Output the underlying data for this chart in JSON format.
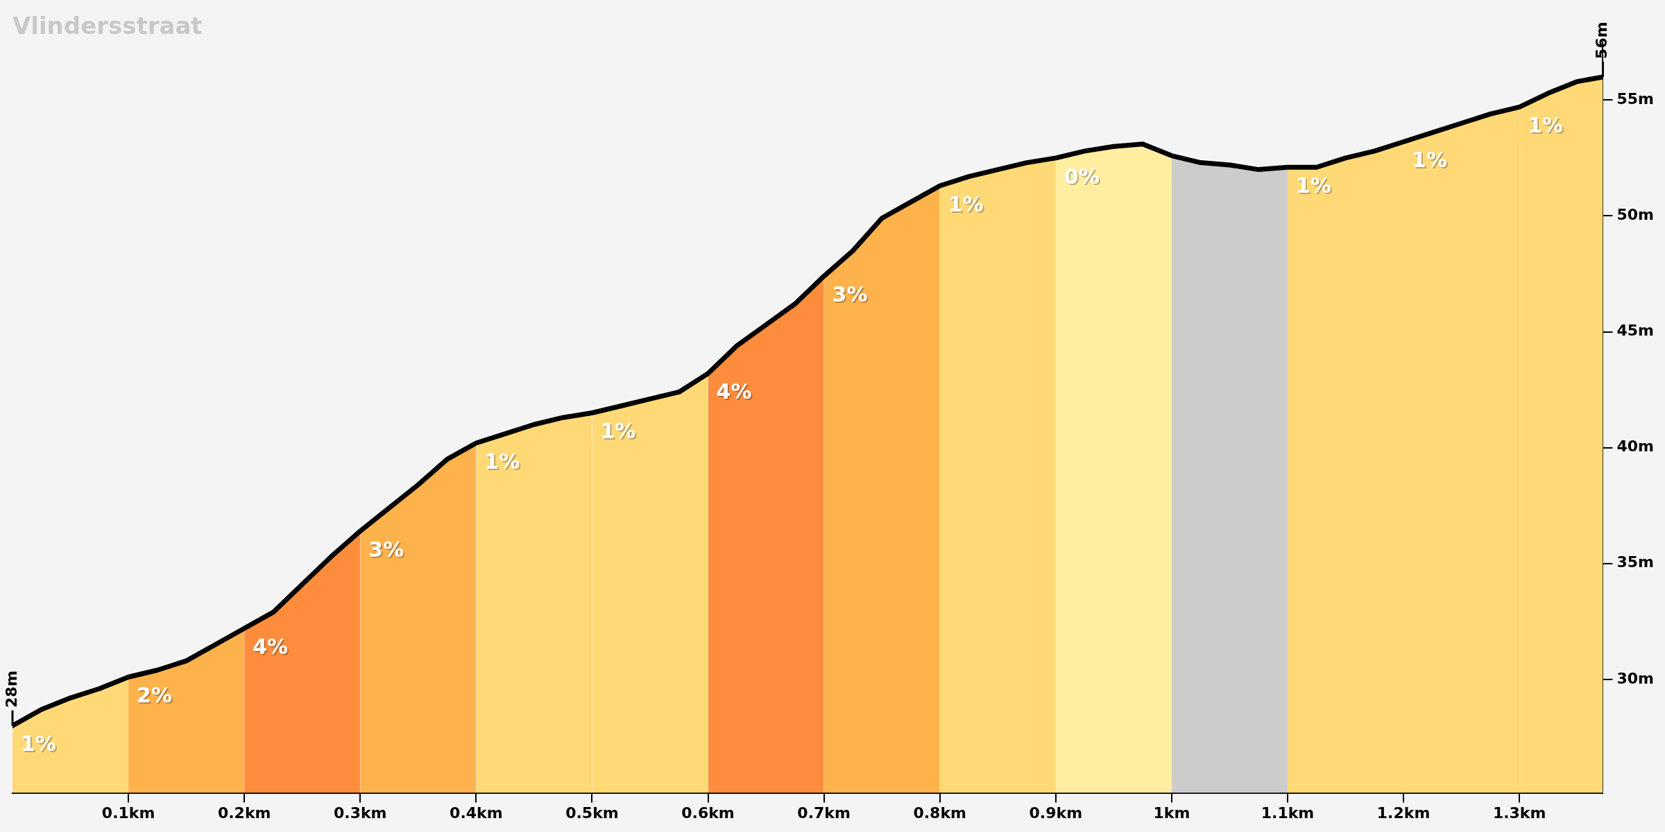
{
  "chart_data": {
    "type": "area",
    "title": "Vlindersstraat",
    "series": [
      {
        "type": "line",
        "color": "#000000",
        "x": [
          0,
          0.025,
          0.05,
          0.075,
          0.1,
          0.125,
          0.15,
          0.175,
          0.2,
          0.225,
          0.25,
          0.275,
          0.3,
          0.325,
          0.35,
          0.375,
          0.4,
          0.425,
          0.45,
          0.475,
          0.5,
          0.525,
          0.55,
          0.575,
          0.6,
          0.625,
          0.65,
          0.675,
          0.7,
          0.725,
          0.75,
          0.775,
          0.8,
          0.825,
          0.85,
          0.875,
          0.9,
          0.925,
          0.95,
          0.975,
          1.0,
          1.025,
          1.05,
          1.075,
          1.1,
          1.125,
          1.15,
          1.175,
          1.2,
          1.225,
          1.25,
          1.275,
          1.3,
          1.325,
          1.35,
          1.372
        ],
        "values": [
          28,
          28.7,
          29.2,
          29.6,
          30.1,
          30.4,
          30.8,
          31.5,
          32.2,
          32.9,
          34.1,
          35.3,
          36.4,
          37.4,
          38.4,
          39.5,
          40.2,
          40.6,
          41.0,
          41.3,
          41.5,
          41.8,
          42.1,
          42.4,
          43.2,
          44.4,
          45.3,
          46.2,
          47.4,
          48.5,
          49.9,
          50.6,
          51.3,
          51.7,
          52.0,
          52.3,
          52.5,
          52.8,
          53.0,
          53.1,
          52.6,
          52.3,
          52.2,
          52.0,
          52.1,
          52.1,
          52.5,
          52.8,
          53.2,
          53.6,
          54.0,
          54.4,
          54.7,
          55.3,
          55.8,
          56
        ]
      },
      {
        "name": "1%",
        "color": "#ffd976",
        "x": [
          0,
          0.025,
          0.05,
          0.075,
          0.1
        ],
        "values": [
          28,
          28.7,
          29.2,
          29.6,
          30.1
        ]
      },
      {
        "name": "2%",
        "color": "#feb24c",
        "x": [
          0.1,
          0.125,
          0.15,
          0.175,
          0.2
        ],
        "values": [
          30.1,
          30.4,
          30.8,
          31.5,
          32.2
        ]
      },
      {
        "name": "4%",
        "color": "#fd8d3c",
        "x": [
          0.2,
          0.225,
          0.25,
          0.275,
          0.3
        ],
        "values": [
          32.2,
          32.9,
          34.1,
          35.3,
          36.4
        ]
      },
      {
        "name": "3%",
        "color": "#feb24c",
        "x": [
          0.3,
          0.325,
          0.35,
          0.375,
          0.4
        ],
        "values": [
          36.4,
          37.4,
          38.4,
          39.5,
          40.2
        ]
      },
      {
        "name": "1%",
        "color": "#ffd976",
        "x": [
          0.4,
          0.425,
          0.45,
          0.475,
          0.5
        ],
        "values": [
          40.2,
          40.6,
          41.0,
          41.3,
          41.5
        ]
      },
      {
        "name": "1%",
        "color": "#ffd976",
        "x": [
          0.5,
          0.525,
          0.55,
          0.575,
          0.6
        ],
        "values": [
          41.5,
          41.8,
          42.1,
          42.4,
          43.2
        ]
      },
      {
        "name": "4%",
        "color": "#fd8d3c",
        "x": [
          0.6,
          0.625,
          0.65,
          0.675,
          0.7
        ],
        "values": [
          43.2,
          44.4,
          45.3,
          46.2,
          47.4
        ]
      },
      {
        "name": "3%",
        "color": "#feb24c",
        "x": [
          0.7,
          0.725,
          0.75,
          0.775,
          0.8
        ],
        "values": [
          47.4,
          48.5,
          49.9,
          50.6,
          51.3
        ]
      },
      {
        "name": "1%",
        "color": "#ffd976",
        "x": [
          0.8,
          0.825,
          0.85,
          0.875,
          0.9
        ],
        "values": [
          51.3,
          51.7,
          52.0,
          52.3,
          52.5
        ]
      },
      {
        "name": "0%",
        "color": "#ffeda0",
        "x": [
          0.9,
          0.925,
          0.95,
          0.975,
          1.0
        ],
        "values": [
          52.5,
          52.8,
          53.0,
          53.1,
          52.6
        ]
      },
      {
        "color": "#cccccc",
        "x": [
          1.0,
          1.025,
          1.05,
          1.075,
          1.1
        ],
        "values": [
          52.6,
          52.3,
          52.2,
          52.0,
          52.1
        ]
      },
      {
        "name": "1%",
        "color": "#ffd976",
        "x": [
          1.1,
          1.125,
          1.15,
          1.175,
          1.2
        ],
        "values": [
          52.1,
          52.1,
          52.5,
          52.8,
          53.2
        ]
      },
      {
        "name": "1%",
        "color": "#ffd976",
        "x": [
          1.2,
          1.225,
          1.25,
          1.275,
          1.3
        ],
        "values": [
          53.2,
          53.6,
          54.0,
          54.4,
          54.7
        ]
      },
      {
        "name": "1%",
        "color": "#ffd976",
        "x": [
          1.3,
          1.325,
          1.35,
          1.372
        ],
        "values": [
          54.7,
          55.3,
          55.8,
          56
        ]
      }
    ],
    "xlim": [
      0,
      1.372
    ],
    "ylim": [
      25.1,
      57.5
    ],
    "xticks": [
      {
        "value": 0.1,
        "label": "0.1km"
      },
      {
        "value": 0.2,
        "label": "0.2km"
      },
      {
        "value": 0.3,
        "label": "0.3km"
      },
      {
        "value": 0.4,
        "label": "0.4km"
      },
      {
        "value": 0.5,
        "label": "0.5km"
      },
      {
        "value": 0.6,
        "label": "0.6km"
      },
      {
        "value": 0.7,
        "label": "0.7km"
      },
      {
        "value": 0.8,
        "label": "0.8km"
      },
      {
        "value": 0.9,
        "label": "0.9km"
      },
      {
        "value": 1,
        "label": "1km"
      },
      {
        "value": 1.1,
        "label": "1.1km"
      },
      {
        "value": 1.2,
        "label": "1.2km"
      },
      {
        "value": 1.3,
        "label": "1.3km"
      }
    ],
    "yticks": [
      {
        "value": 30,
        "label": "30m"
      },
      {
        "value": 35,
        "label": "35m"
      },
      {
        "value": 40,
        "label": "40m"
      },
      {
        "value": 45,
        "label": "45m"
      },
      {
        "value": 50,
        "label": "50m"
      },
      {
        "value": 55,
        "label": "55m"
      }
    ],
    "annotations": [
      {
        "text": "28m",
        "x": 0,
        "y": 28
      },
      {
        "text": "56m",
        "x": 1.372,
        "y": 56
      }
    ]
  }
}
